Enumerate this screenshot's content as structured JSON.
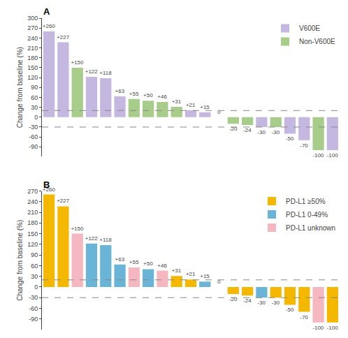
{
  "chart_data": [
    {
      "type": "bar",
      "title": "A",
      "ylabel": "Change from baseline (%)",
      "categories": [
        null,
        null,
        null,
        null,
        null,
        null,
        null,
        null,
        null,
        null,
        null,
        null,
        null,
        null,
        null,
        null,
        null,
        null,
        null,
        null,
        null
      ],
      "series": [
        {
          "name": "V600E",
          "color": "#c4b8e0",
          "values": [
            260,
            227,
            null,
            122,
            118,
            63,
            null,
            null,
            null,
            null,
            21,
            15,
            0,
            null,
            null,
            -30,
            null,
            -50,
            -70,
            null,
            -100
          ],
          "value_labels": [
            "+260",
            "+227",
            null,
            "+122",
            "+118",
            "+63",
            null,
            null,
            null,
            null,
            "+21",
            "+15",
            "0",
            null,
            null,
            "-30",
            null,
            "-50",
            "-70",
            null,
            "-100"
          ]
        },
        {
          "name": "Non-V600E",
          "color": "#a8cc8a",
          "values": [
            null,
            null,
            150,
            null,
            null,
            null,
            55,
            50,
            46,
            31,
            null,
            null,
            null,
            -20,
            -24,
            null,
            -30,
            null,
            null,
            -100,
            null
          ],
          "value_labels": [
            null,
            null,
            "+150",
            null,
            null,
            null,
            "+55",
            "+50",
            "+46",
            "+31",
            null,
            null,
            null,
            "-20",
            "-24",
            null,
            "-30",
            null,
            null,
            "-100",
            null
          ]
        }
      ],
      "hlines": [
        20,
        -30
      ],
      "ylim": [
        -120,
        300
      ],
      "yticks": [
        -90,
        -60,
        -30,
        0,
        30,
        60,
        90,
        120,
        150,
        180,
        210,
        240,
        270,
        300
      ],
      "data_labels": true,
      "grid": false,
      "legend": "upper right",
      "tick_labels": "y"
    },
    {
      "type": "bar",
      "title": "B",
      "ylabel": "Change from baseline (%)",
      "categories": [
        null,
        null,
        null,
        null,
        null,
        null,
        null,
        null,
        null,
        null,
        null,
        null,
        null,
        null,
        null,
        null,
        null,
        null,
        null,
        null,
        null
      ],
      "series": [
        {
          "name": "PD-L1 ≥50%",
          "color": "#f5b800",
          "values": [
            260,
            227,
            null,
            null,
            null,
            null,
            null,
            null,
            null,
            31,
            21,
            null,
            0,
            -20,
            -24,
            null,
            -30,
            -50,
            -70,
            null,
            -100
          ],
          "value_labels": [
            "+260",
            "+227",
            null,
            null,
            null,
            null,
            null,
            null,
            null,
            "+31",
            "+21",
            null,
            "0",
            "-20",
            "-24",
            null,
            "-30",
            "-50",
            "-70",
            null,
            "-100"
          ]
        },
        {
          "name": "PD-L1 0-49%",
          "color": "#6ab4d8",
          "values": [
            null,
            null,
            null,
            122,
            118,
            63,
            null,
            50,
            null,
            null,
            null,
            15,
            null,
            null,
            null,
            -30,
            null,
            null,
            null,
            null,
            null
          ],
          "value_labels": [
            null,
            null,
            null,
            "+122",
            "+118",
            "+63",
            null,
            "+50",
            null,
            null,
            null,
            "+15",
            null,
            null,
            null,
            "-30",
            null,
            null,
            null,
            null,
            null
          ]
        },
        {
          "name": "PD-L1 unknown",
          "color": "#f5b8c0",
          "values": [
            null,
            null,
            150,
            null,
            null,
            null,
            55,
            null,
            46,
            null,
            null,
            null,
            null,
            null,
            null,
            null,
            null,
            null,
            null,
            -100,
            null
          ],
          "value_labels": [
            null,
            null,
            "+150",
            null,
            null,
            null,
            "+55",
            null,
            "+46",
            null,
            null,
            null,
            null,
            null,
            null,
            null,
            null,
            null,
            null,
            "-100",
            null
          ]
        }
      ],
      "hlines": [
        20,
        -30
      ],
      "ylim": [
        -120,
        270
      ],
      "yticks": [
        -90,
        -60,
        -30,
        0,
        30,
        60,
        90,
        120,
        150,
        180,
        210,
        240,
        270
      ],
      "data_labels": true,
      "grid": false,
      "legend": "upper right",
      "tick_labels": "y"
    }
  ]
}
